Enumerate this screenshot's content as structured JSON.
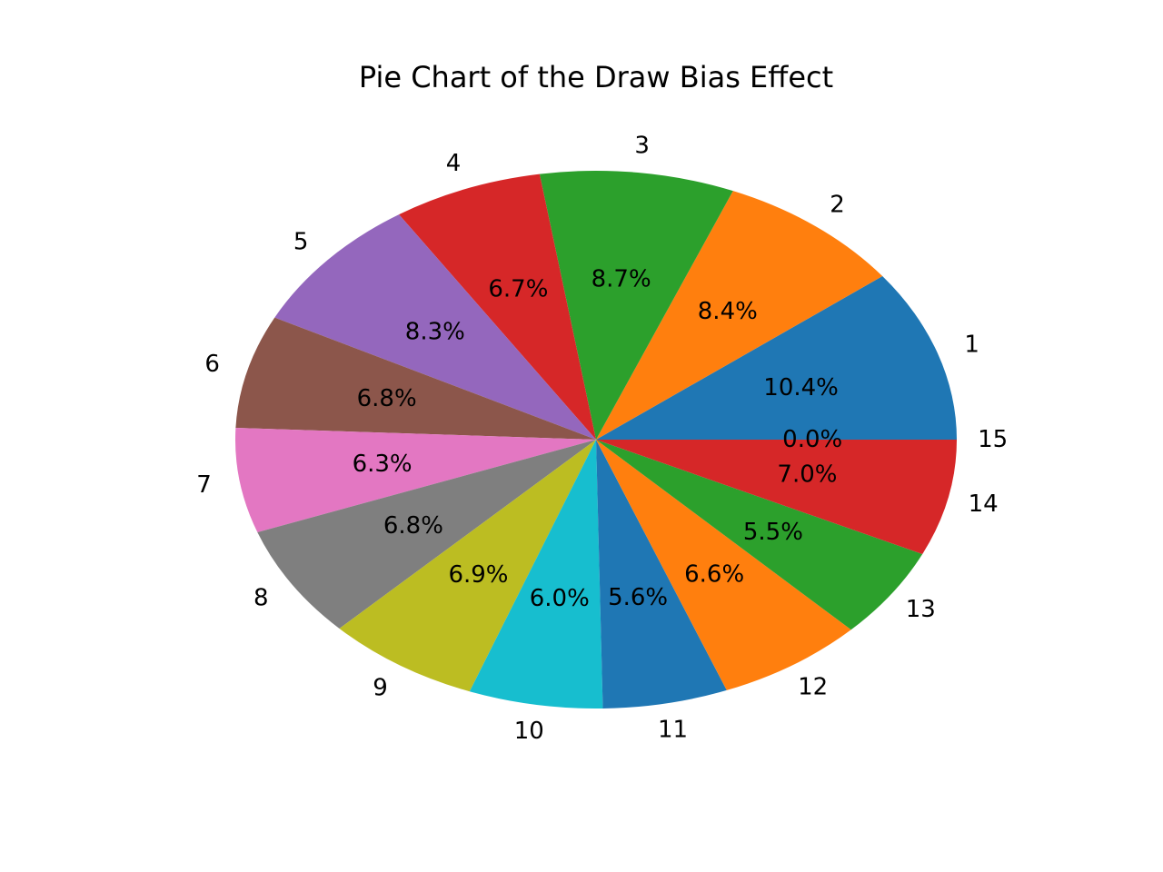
{
  "chart_data": {
    "type": "pie",
    "title": "Pie Chart of the Draw Bias Effect",
    "start_angle_deg": 0,
    "direction": "counterclockwise",
    "slices": [
      {
        "label": "1",
        "value": 10.4,
        "pct_label": "10.4%",
        "color": "#1f77b4"
      },
      {
        "label": "2",
        "value": 8.4,
        "pct_label": "8.4%",
        "color": "#ff7f0e"
      },
      {
        "label": "3",
        "value": 8.7,
        "pct_label": "8.7%",
        "color": "#2ca02c"
      },
      {
        "label": "4",
        "value": 6.7,
        "pct_label": "6.7%",
        "color": "#d62728"
      },
      {
        "label": "5",
        "value": 8.3,
        "pct_label": "8.3%",
        "color": "#9467bd"
      },
      {
        "label": "6",
        "value": 6.8,
        "pct_label": "6.8%",
        "color": "#8c564b"
      },
      {
        "label": "7",
        "value": 6.3,
        "pct_label": "6.3%",
        "color": "#e377c2"
      },
      {
        "label": "8",
        "value": 6.8,
        "pct_label": "6.8%",
        "color": "#7f7f7f"
      },
      {
        "label": "9",
        "value": 6.9,
        "pct_label": "6.9%",
        "color": "#bcbd22"
      },
      {
        "label": "10",
        "value": 6.0,
        "pct_label": "6.0%",
        "color": "#17becf"
      },
      {
        "label": "11",
        "value": 5.6,
        "pct_label": "5.6%",
        "color": "#1f77b4"
      },
      {
        "label": "12",
        "value": 6.6,
        "pct_label": "6.6%",
        "color": "#ff7f0e"
      },
      {
        "label": "13",
        "value": 5.5,
        "pct_label": "5.5%",
        "color": "#2ca02c"
      },
      {
        "label": "14",
        "value": 7.0,
        "pct_label": "7.0%",
        "color": "#d62728"
      },
      {
        "label": "15",
        "value": 0.0,
        "pct_label": "0.0%",
        "color": "#9467bd"
      }
    ]
  }
}
